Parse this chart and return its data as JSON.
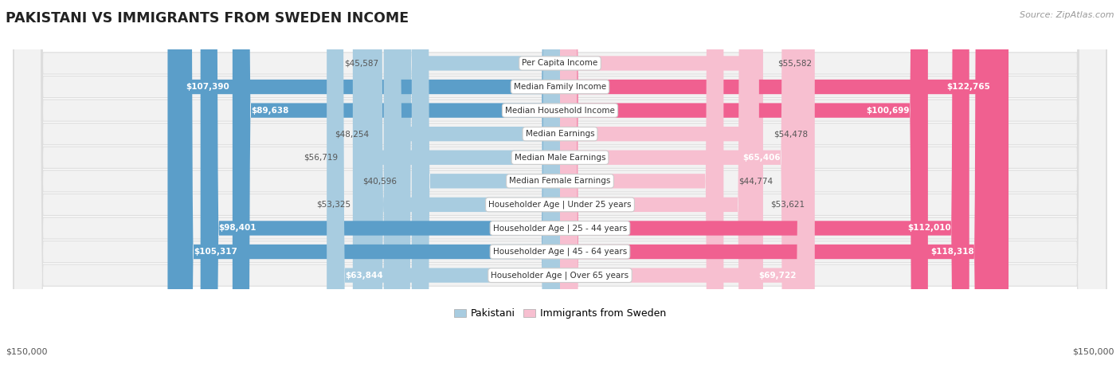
{
  "title": "PAKISTANI VS IMMIGRANTS FROM SWEDEN INCOME",
  "source": "Source: ZipAtlas.com",
  "categories": [
    "Per Capita Income",
    "Median Family Income",
    "Median Household Income",
    "Median Earnings",
    "Median Male Earnings",
    "Median Female Earnings",
    "Householder Age | Under 25 years",
    "Householder Age | 25 - 44 years",
    "Householder Age | 45 - 64 years",
    "Householder Age | Over 65 years"
  ],
  "pakistani_values": [
    45587,
    107390,
    89638,
    48254,
    56719,
    40596,
    53325,
    98401,
    105317,
    63844
  ],
  "sweden_values": [
    55582,
    122765,
    100699,
    54478,
    65406,
    44774,
    53621,
    112010,
    118318,
    69722
  ],
  "pakistani_labels": [
    "$45,587",
    "$107,390",
    "$89,638",
    "$48,254",
    "$56,719",
    "$40,596",
    "$53,325",
    "$98,401",
    "$105,317",
    "$63,844"
  ],
  "sweden_labels": [
    "$55,582",
    "$122,765",
    "$100,699",
    "$54,478",
    "$65,406",
    "$44,774",
    "$53,621",
    "$112,010",
    "$118,318",
    "$69,722"
  ],
  "pakistani_color_light": "#a8cce0",
  "pakistani_color_dark": "#5b9ec9",
  "sweden_color_light": "#f7bfd0",
  "sweden_color_dark": "#f06090",
  "row_bg_color": "#f2f2f2",
  "row_border_color": "#dddddd",
  "max_value": 150000,
  "legend_pakistani": "Pakistani",
  "legend_sweden": "Immigrants from Sweden",
  "background_color": "#ffffff",
  "axis_label_left": "$150,000",
  "axis_label_right": "$150,000",
  "inside_threshold": 60000,
  "label_inside_color": "#ffffff",
  "label_outside_color": "#555555"
}
